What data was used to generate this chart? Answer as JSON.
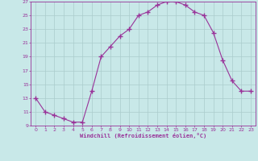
{
  "x": [
    0,
    1,
    2,
    3,
    4,
    5,
    6,
    7,
    8,
    9,
    10,
    11,
    12,
    13,
    14,
    15,
    16,
    17,
    18,
    19,
    20,
    21,
    22,
    23
  ],
  "y": [
    13,
    11,
    10.5,
    10,
    9.5,
    9.5,
    14,
    19,
    20.5,
    22,
    23,
    25,
    25.5,
    26.5,
    27,
    27,
    26.5,
    25.5,
    25,
    22.5,
    18.5,
    15.5,
    14,
    14
  ],
  "line_color": "#993399",
  "marker": "+",
  "bg_color": "#c8e8e8",
  "grid_color": "#aacccc",
  "xlabel": "Windchill (Refroidissement éolien,°C)",
  "xlabel_color": "#993399",
  "tick_color": "#993399",
  "spine_color": "#993399",
  "ylim": [
    9,
    27
  ],
  "xlim": [
    -0.5,
    23.5
  ],
  "yticks": [
    9,
    11,
    13,
    15,
    17,
    19,
    21,
    23,
    25,
    27
  ],
  "xticks": [
    0,
    1,
    2,
    3,
    4,
    5,
    6,
    7,
    8,
    9,
    10,
    11,
    12,
    13,
    14,
    15,
    16,
    17,
    18,
    19,
    20,
    21,
    22,
    23
  ],
  "figsize": [
    3.2,
    2.0
  ],
  "dpi": 100
}
